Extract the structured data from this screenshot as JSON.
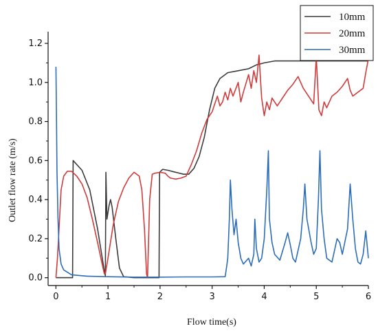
{
  "chart_data": {
    "type": "line",
    "xlabel": "Flow time(s)",
    "ylabel": "Outlet flow rate (m/s)",
    "xlim": [
      -0.15,
      6.0
    ],
    "ylim": [
      -0.04,
      1.26
    ],
    "x_ticks": [
      0,
      1,
      2,
      3,
      4,
      5,
      6
    ],
    "y_ticks": [
      0.0,
      0.2,
      0.4,
      0.6,
      0.8,
      1.0,
      1.2
    ],
    "y_tick_labels": [
      "0.0",
      "0.2",
      "0.4",
      "0.6",
      "0.8",
      "1.0",
      "1.2"
    ],
    "legend_position": "top-right",
    "grid": false,
    "series": [
      {
        "name": "10mm",
        "color": "#3a3a3a",
        "points": [
          [
            0.0,
            0.0
          ],
          [
            0.02,
            0.0
          ],
          [
            0.32,
            0.0
          ],
          [
            0.33,
            0.6
          ],
          [
            0.5,
            0.55
          ],
          [
            0.65,
            0.45
          ],
          [
            0.8,
            0.25
          ],
          [
            0.92,
            0.05
          ],
          [
            0.95,
            0.01
          ],
          [
            0.96,
            0.54
          ],
          [
            0.98,
            0.3
          ],
          [
            1.02,
            0.37
          ],
          [
            1.05,
            0.4
          ],
          [
            1.08,
            0.36
          ],
          [
            1.15,
            0.2
          ],
          [
            1.22,
            0.05
          ],
          [
            1.3,
            0.005
          ],
          [
            1.5,
            0.0
          ],
          [
            1.98,
            0.0
          ],
          [
            1.99,
            0.54
          ],
          [
            2.05,
            0.555
          ],
          [
            2.15,
            0.55
          ],
          [
            2.3,
            0.54
          ],
          [
            2.45,
            0.53
          ],
          [
            2.55,
            0.53
          ],
          [
            2.65,
            0.56
          ],
          [
            2.75,
            0.62
          ],
          [
            2.85,
            0.72
          ],
          [
            2.95,
            0.86
          ],
          [
            3.05,
            0.97
          ],
          [
            3.15,
            1.02
          ],
          [
            3.3,
            1.05
          ],
          [
            3.5,
            1.06
          ],
          [
            3.7,
            1.07
          ],
          [
            3.85,
            1.09
          ],
          [
            4.0,
            1.1
          ],
          [
            4.2,
            1.11
          ],
          [
            4.5,
            1.11
          ],
          [
            5.0,
            1.11
          ],
          [
            6.0,
            1.11
          ]
        ]
      },
      {
        "name": "20mm",
        "color": "#d03a3a",
        "points": [
          [
            0.0,
            0.0
          ],
          [
            0.03,
            0.1
          ],
          [
            0.1,
            0.45
          ],
          [
            0.15,
            0.52
          ],
          [
            0.22,
            0.545
          ],
          [
            0.3,
            0.545
          ],
          [
            0.4,
            0.52
          ],
          [
            0.5,
            0.48
          ],
          [
            0.6,
            0.41
          ],
          [
            0.7,
            0.3
          ],
          [
            0.8,
            0.18
          ],
          [
            0.88,
            0.08
          ],
          [
            0.93,
            0.02
          ],
          [
            0.95,
            0.02
          ],
          [
            1.0,
            0.1
          ],
          [
            1.1,
            0.27
          ],
          [
            1.2,
            0.39
          ],
          [
            1.3,
            0.46
          ],
          [
            1.4,
            0.51
          ],
          [
            1.5,
            0.54
          ],
          [
            1.6,
            0.52
          ],
          [
            1.65,
            0.45
          ],
          [
            1.7,
            0.25
          ],
          [
            1.74,
            0.02
          ],
          [
            1.76,
            0.0
          ],
          [
            1.8,
            0.4
          ],
          [
            1.85,
            0.53
          ],
          [
            1.9,
            0.535
          ],
          [
            2.0,
            0.54
          ],
          [
            2.1,
            0.535
          ],
          [
            2.15,
            0.52
          ],
          [
            2.2,
            0.51
          ],
          [
            2.3,
            0.505
          ],
          [
            2.4,
            0.51
          ],
          [
            2.5,
            0.52
          ],
          [
            2.6,
            0.58
          ],
          [
            2.7,
            0.65
          ],
          [
            2.8,
            0.74
          ],
          [
            2.9,
            0.81
          ],
          [
            3.0,
            0.85
          ],
          [
            3.05,
            0.89
          ],
          [
            3.1,
            0.93
          ],
          [
            3.15,
            0.88
          ],
          [
            3.2,
            0.9
          ],
          [
            3.25,
            0.95
          ],
          [
            3.3,
            0.91
          ],
          [
            3.35,
            0.97
          ],
          [
            3.4,
            0.93
          ],
          [
            3.5,
            1.0
          ],
          [
            3.55,
            0.9
          ],
          [
            3.6,
            0.95
          ],
          [
            3.7,
            1.04
          ],
          [
            3.75,
            0.97
          ],
          [
            3.8,
            1.06
          ],
          [
            3.85,
            1.0
          ],
          [
            3.9,
            1.14
          ],
          [
            3.95,
            0.92
          ],
          [
            4.0,
            0.83
          ],
          [
            4.05,
            0.9
          ],
          [
            4.1,
            0.86
          ],
          [
            4.15,
            0.92
          ],
          [
            4.25,
            0.88
          ],
          [
            4.35,
            0.92
          ],
          [
            4.45,
            0.96
          ],
          [
            4.55,
            0.99
          ],
          [
            4.65,
            1.03
          ],
          [
            4.75,
            0.97
          ],
          [
            4.85,
            0.93
          ],
          [
            4.95,
            0.89
          ],
          [
            5.0,
            1.13
          ],
          [
            5.05,
            0.86
          ],
          [
            5.1,
            0.83
          ],
          [
            5.15,
            0.9
          ],
          [
            5.2,
            0.87
          ],
          [
            5.3,
            0.93
          ],
          [
            5.4,
            0.95
          ],
          [
            5.5,
            0.98
          ],
          [
            5.6,
            1.02
          ],
          [
            5.65,
            0.96
          ],
          [
            5.7,
            0.93
          ],
          [
            5.8,
            0.95
          ],
          [
            5.9,
            0.97
          ],
          [
            5.95,
            1.05
          ],
          [
            6.0,
            1.12
          ]
        ]
      },
      {
        "name": "30mm",
        "color": "#2b6cb8",
        "points": [
          [
            0.0,
            1.08
          ],
          [
            0.01,
            0.85
          ],
          [
            0.02,
            0.55
          ],
          [
            0.04,
            0.3
          ],
          [
            0.06,
            0.15
          ],
          [
            0.1,
            0.07
          ],
          [
            0.15,
            0.04
          ],
          [
            0.3,
            0.015
          ],
          [
            0.6,
            0.008
          ],
          [
            1.0,
            0.005
          ],
          [
            1.5,
            0.003
          ],
          [
            2.0,
            0.003
          ],
          [
            2.5,
            0.004
          ],
          [
            3.0,
            0.004
          ],
          [
            3.25,
            0.005
          ],
          [
            3.28,
            0.06
          ],
          [
            3.3,
            0.1
          ],
          [
            3.33,
            0.3
          ],
          [
            3.35,
            0.5
          ],
          [
            3.38,
            0.35
          ],
          [
            3.42,
            0.22
          ],
          [
            3.46,
            0.3
          ],
          [
            3.5,
            0.18
          ],
          [
            3.55,
            0.1
          ],
          [
            3.6,
            0.07
          ],
          [
            3.7,
            0.1
          ],
          [
            3.75,
            0.06
          ],
          [
            3.8,
            0.12
          ],
          [
            3.82,
            0.3
          ],
          [
            3.85,
            0.15
          ],
          [
            3.9,
            0.08
          ],
          [
            3.95,
            0.1
          ],
          [
            4.0,
            0.2
          ],
          [
            4.05,
            0.45
          ],
          [
            4.08,
            0.65
          ],
          [
            4.1,
            0.3
          ],
          [
            4.15,
            0.18
          ],
          [
            4.2,
            0.12
          ],
          [
            4.3,
            0.09
          ],
          [
            4.4,
            0.18
          ],
          [
            4.45,
            0.23
          ],
          [
            4.5,
            0.17
          ],
          [
            4.55,
            0.1
          ],
          [
            4.6,
            0.08
          ],
          [
            4.7,
            0.2
          ],
          [
            4.75,
            0.35
          ],
          [
            4.78,
            0.48
          ],
          [
            4.82,
            0.3
          ],
          [
            4.9,
            0.18
          ],
          [
            4.95,
            0.12
          ],
          [
            5.0,
            0.15
          ],
          [
            5.04,
            0.4
          ],
          [
            5.07,
            0.65
          ],
          [
            5.1,
            0.35
          ],
          [
            5.15,
            0.2
          ],
          [
            5.2,
            0.1
          ],
          [
            5.3,
            0.08
          ],
          [
            5.4,
            0.2
          ],
          [
            5.45,
            0.18
          ],
          [
            5.5,
            0.12
          ],
          [
            5.6,
            0.25
          ],
          [
            5.65,
            0.48
          ],
          [
            5.7,
            0.3
          ],
          [
            5.75,
            0.15
          ],
          [
            5.8,
            0.08
          ],
          [
            5.85,
            0.07
          ],
          [
            5.9,
            0.12
          ],
          [
            5.95,
            0.24
          ],
          [
            6.0,
            0.1
          ]
        ]
      }
    ]
  }
}
